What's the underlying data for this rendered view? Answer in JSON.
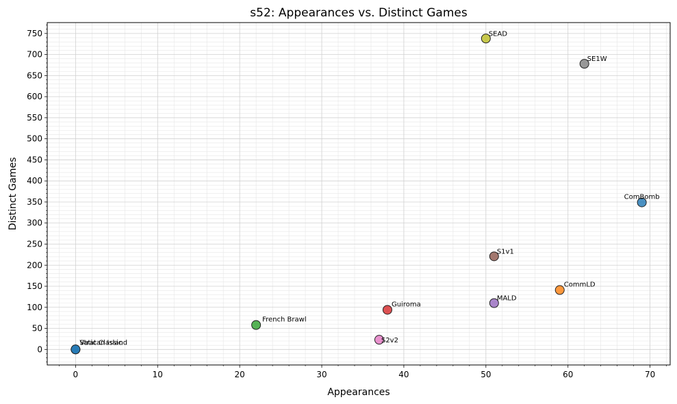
{
  "chart_data": {
    "type": "scatter",
    "title": "s52: Appearances vs. Distinct Games",
    "xlabel": "Appearances",
    "ylabel": "Distinct Games",
    "xlim": [
      -3.45,
      72.45
    ],
    "ylim": [
      -36.9,
      775.8
    ],
    "xticks": [
      0,
      10,
      20,
      30,
      40,
      50,
      60,
      70
    ],
    "yticks": [
      0,
      50,
      100,
      150,
      200,
      250,
      300,
      350,
      400,
      450,
      500,
      550,
      600,
      650,
      700,
      750
    ],
    "grid": "major and minor",
    "points": [
      {
        "label": "Strat Classic",
        "x": 0,
        "y": 0,
        "color": "#1f77b4"
      },
      {
        "label": "Vatican Island",
        "x": 0,
        "y": 0,
        "color": "#1f77b4"
      },
      {
        "label": "CommLD",
        "x": 59,
        "y": 141,
        "color": "#ff7f0e"
      },
      {
        "label": "French Brawl",
        "x": 22,
        "y": 58,
        "color": "#2ca02c"
      },
      {
        "label": "Guiroma",
        "x": 38,
        "y": 94,
        "color": "#d62728"
      },
      {
        "label": "MALD",
        "x": 51,
        "y": 110,
        "color": "#9467bd"
      },
      {
        "label": "S1v1",
        "x": 51,
        "y": 221,
        "color": "#8c564b"
      },
      {
        "label": "S2v2",
        "x": 37,
        "y": 23,
        "color": "#e377c2"
      },
      {
        "label": "SE1W",
        "x": 62,
        "y": 678,
        "color": "#7f7f7f"
      },
      {
        "label": "SEAD",
        "x": 50,
        "y": 738,
        "color": "#bcbd22"
      },
      {
        "label": "ComBomb",
        "x": 69,
        "y": 349,
        "color": "#1f77b4"
      }
    ]
  }
}
